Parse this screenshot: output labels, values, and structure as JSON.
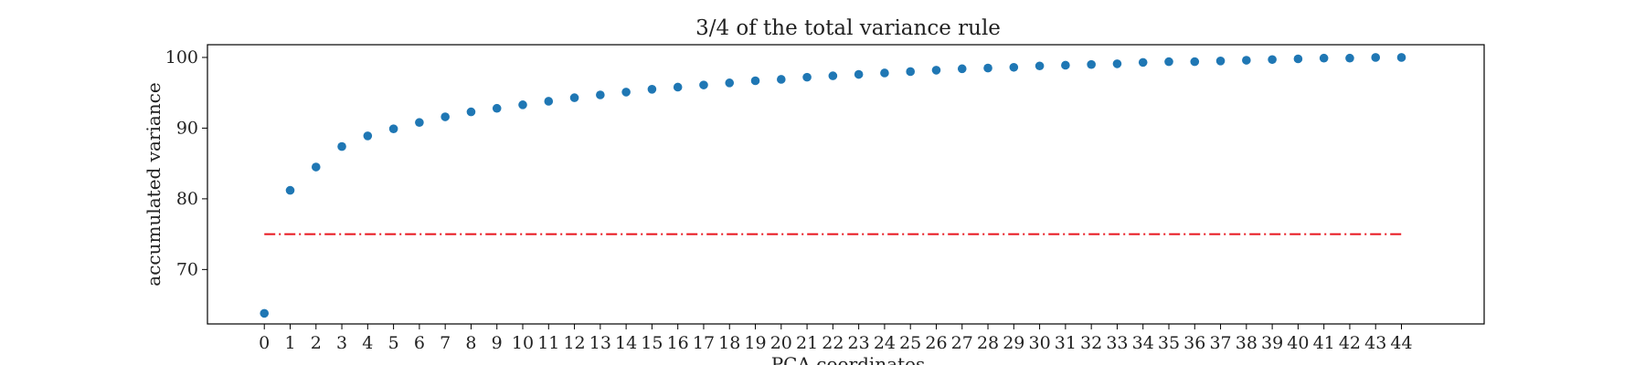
{
  "chart_data": {
    "type": "scatter",
    "title": "3/4 of the total variance rule",
    "xlabel": "PCA coordinates",
    "ylabel": "accumulated variance",
    "x": [
      0,
      1,
      2,
      3,
      4,
      5,
      6,
      7,
      8,
      9,
      10,
      11,
      12,
      13,
      14,
      15,
      16,
      17,
      18,
      19,
      20,
      21,
      22,
      23,
      24,
      25,
      26,
      27,
      28,
      29,
      30,
      31,
      32,
      33,
      34,
      35,
      36,
      37,
      38,
      39,
      40,
      41,
      42,
      43,
      44
    ],
    "series": [
      {
        "values": [
          63.8,
          81.2,
          84.5,
          87.4,
          88.9,
          89.9,
          90.8,
          91.6,
          92.3,
          92.8,
          93.3,
          93.8,
          94.3,
          94.7,
          95.1,
          95.5,
          95.8,
          96.1,
          96.4,
          96.7,
          96.9,
          97.2,
          97.4,
          97.6,
          97.8,
          98.0,
          98.2,
          98.4,
          98.5,
          98.6,
          98.8,
          98.9,
          99.0,
          99.1,
          99.3,
          99.4,
          99.4,
          99.5,
          99.6,
          99.7,
          99.8,
          99.9,
          99.9,
          100.0,
          100.0
        ],
        "color": "#1f77b4"
      }
    ],
    "threshold": {
      "y": 75,
      "color": "#e8141c",
      "style": "dash-dot"
    },
    "xticks": [
      0,
      1,
      2,
      3,
      4,
      5,
      6,
      7,
      8,
      9,
      10,
      11,
      12,
      13,
      14,
      15,
      16,
      17,
      18,
      19,
      20,
      21,
      22,
      23,
      24,
      25,
      26,
      27,
      28,
      29,
      30,
      31,
      32,
      33,
      34,
      35,
      36,
      37,
      38,
      39,
      40,
      41,
      42,
      43,
      44
    ],
    "yticks": [
      70,
      80,
      90,
      100
    ],
    "xlim": [
      -2.2,
      47.2
    ],
    "ylim": [
      62.3,
      101.8
    ],
    "grid": false,
    "legend": "none"
  }
}
